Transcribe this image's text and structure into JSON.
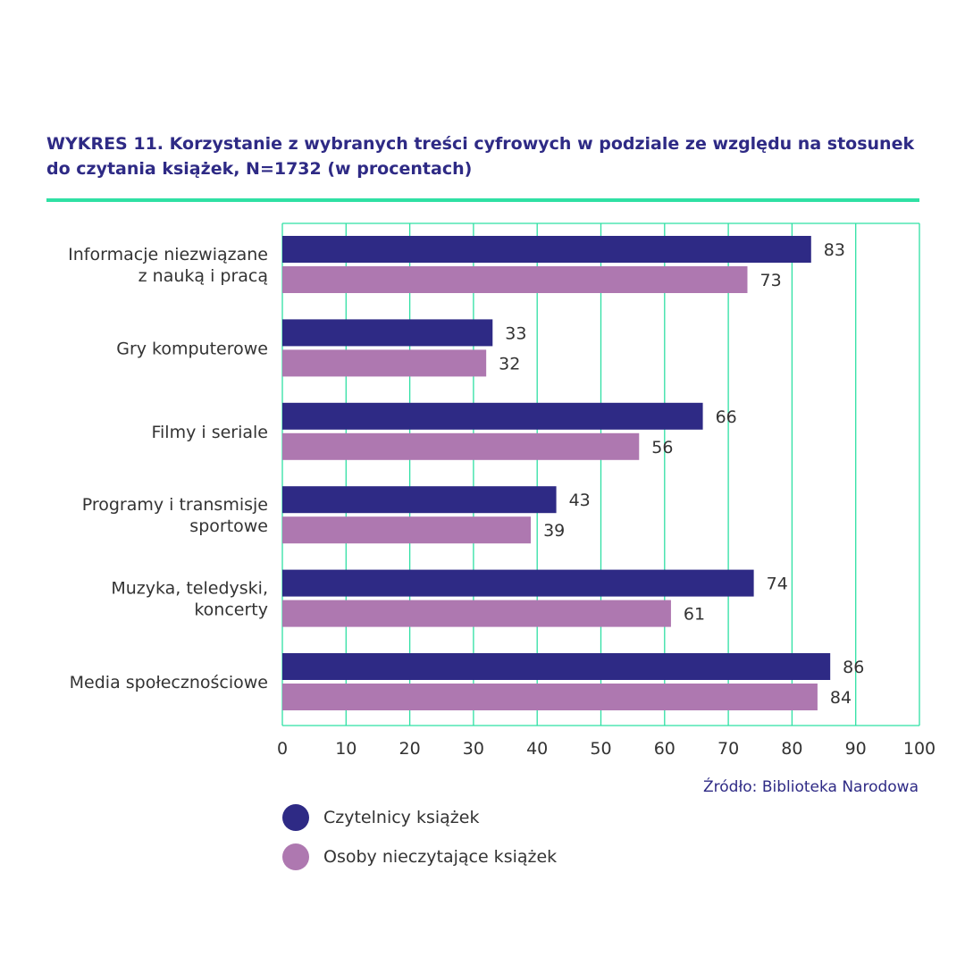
{
  "chart_data": {
    "type": "bar",
    "orientation": "horizontal",
    "title": "WYKRES 11.  Korzystanie z wybranych treści cyfrowych w podziale ze względu na stosunek do czytania książek, N=1732 (w procentach)",
    "source": "Źródło: Biblioteka Narodowa",
    "categories": [
      [
        "Informacje niezwiązane",
        "z nauką i pracą"
      ],
      [
        "Gry komputerowe"
      ],
      [
        "Filmy i seriale"
      ],
      [
        "Programy i transmisje",
        "sportowe"
      ],
      [
        "Muzyka, teledyski,",
        "koncerty"
      ],
      [
        "Media społecznościowe"
      ]
    ],
    "series": [
      {
        "name": "Czytelnicy książek",
        "color": "#2e2a85",
        "values": [
          83,
          33,
          66,
          43,
          74,
          86
        ]
      },
      {
        "name": "Osoby nieczytające książek",
        "color": "#ae78b0",
        "values": [
          73,
          32,
          56,
          39,
          61,
          84
        ]
      }
    ],
    "xlim": [
      0,
      100
    ],
    "xticks": [
      0,
      10,
      20,
      30,
      40,
      50,
      60,
      70,
      80,
      90,
      100
    ],
    "grid": true,
    "grid_color": "#2fe0a4",
    "legend_position": "bottom-left"
  }
}
